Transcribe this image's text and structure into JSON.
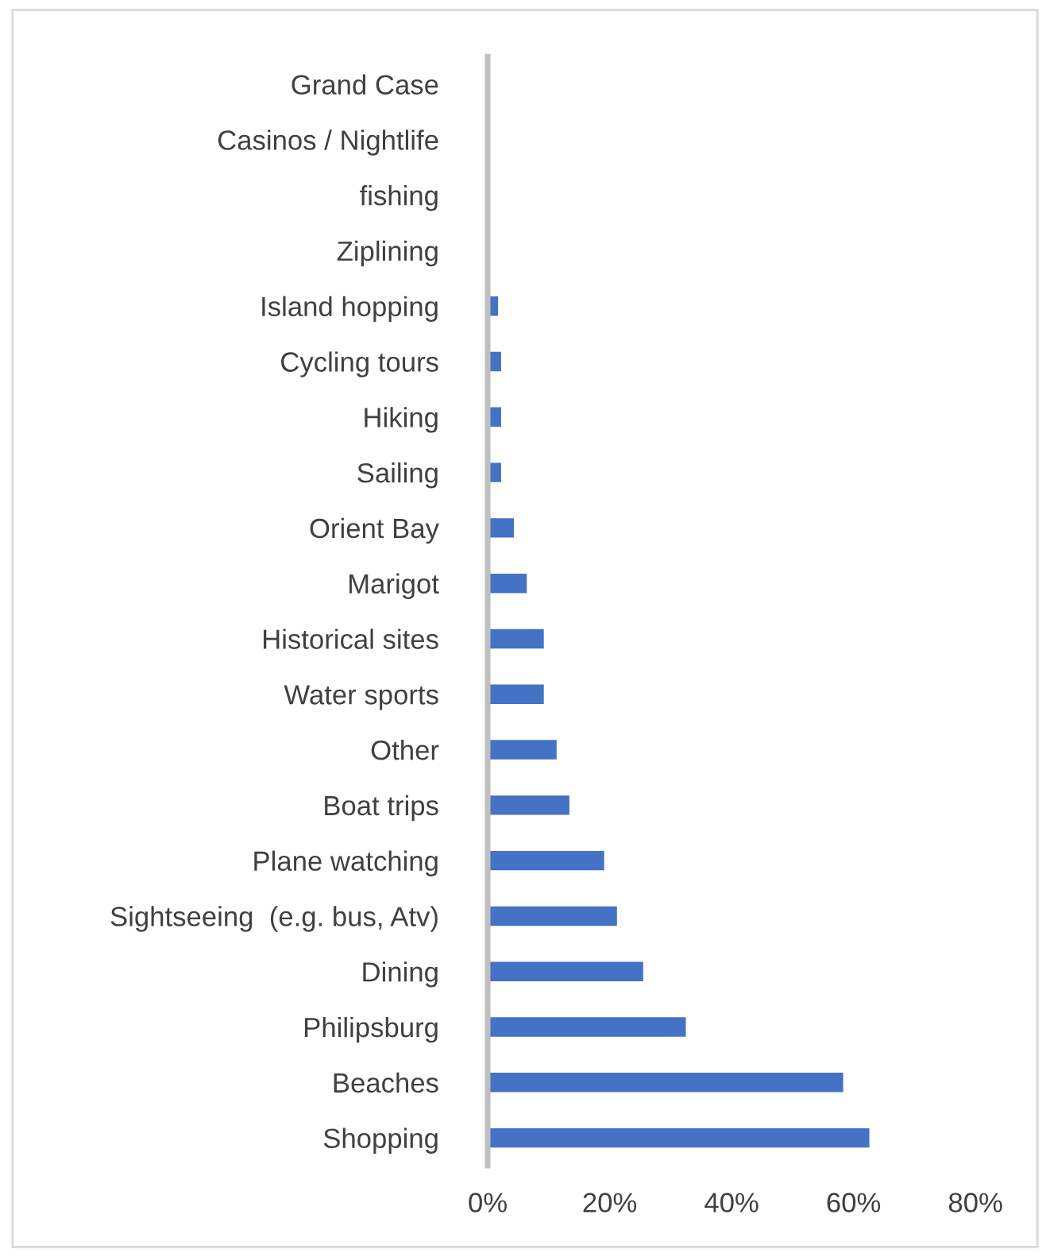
{
  "chart_data": {
    "type": "bar",
    "orientation": "horizontal",
    "categories": [
      "Grand Case",
      "Casinos / Nightlife",
      "fishing",
      "Ziplining",
      "Island hopping",
      "Cycling tours",
      "Hiking",
      "Sailing",
      "Orient Bay",
      "Marigot",
      "Historical sites",
      "Water sports",
      "Other",
      "Boat trips",
      "Plane watching",
      "Sightseeing  (e.g. bus, Atv)",
      "Dining",
      "Philipsburg",
      "Beaches",
      "Shopping"
    ],
    "values": [
      0,
      0,
      0,
      0,
      1.7,
      2.2,
      2.2,
      2.2,
      4.3,
      6.4,
      9.2,
      9.2,
      11.3,
      13.4,
      19.1,
      21.2,
      25.5,
      32.5,
      58.3,
      62.6
    ],
    "color": "#4472c4",
    "xlim": [
      0,
      80
    ],
    "xticks": [
      {
        "value": 0,
        "label": "0%"
      },
      {
        "value": 20,
        "label": "20%"
      },
      {
        "value": 40,
        "label": "40%"
      },
      {
        "value": 60,
        "label": "60%"
      },
      {
        "value": 80,
        "label": "80%"
      }
    ],
    "grid": false,
    "legend": false
  }
}
